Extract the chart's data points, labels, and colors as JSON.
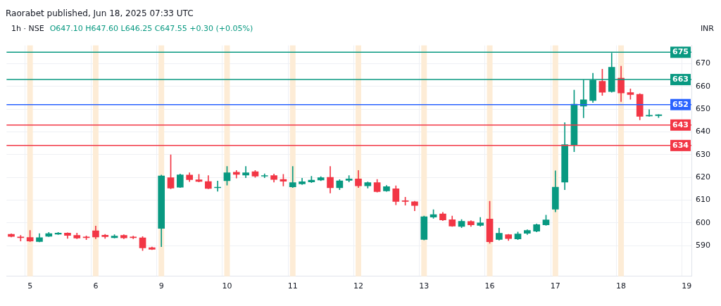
{
  "chart_data": {
    "type": "candlestick",
    "title": "1h · NSE",
    "subtitle": "O647.10 H647.60 L646.25 C647.55 +0.30 (+0.05%)",
    "annotations": [
      "Raorabet published, Jun 18, 2025 07:33 UTC"
    ],
    "ylabel": "INR",
    "categories": [
      null,
      null,
      "5",
      null,
      null,
      null,
      null,
      null,
      null,
      "6",
      null,
      null,
      null,
      null,
      null,
      null,
      "9",
      null,
      null,
      null,
      null,
      null,
      null,
      "10",
      null,
      null,
      null,
      null,
      null,
      null,
      "11",
      null,
      null,
      null,
      null,
      null,
      null,
      "12",
      null,
      null,
      null,
      null,
      null,
      null,
      "13",
      null,
      null,
      null,
      null,
      null,
      null,
      "16",
      null,
      null,
      null,
      null,
      null,
      null,
      "17",
      null,
      null,
      null,
      null,
      null,
      null,
      "18",
      null,
      null,
      null,
      null,
      null,
      null,
      "19"
    ],
    "ohlc": [
      [
        595,
        595.2,
        593.8,
        594
      ],
      [
        593.7,
        594.5,
        592,
        593.5
      ],
      [
        593.6,
        596.7,
        591.8,
        592
      ],
      [
        591.8,
        595.3,
        591.6,
        593.5
      ],
      [
        594.1,
        595.8,
        593.9,
        595.3
      ],
      [
        595,
        595.8,
        594.9,
        595.5
      ],
      [
        595.5,
        595.7,
        593.2,
        594.5
      ],
      [
        594.5,
        595.5,
        593,
        593.3
      ],
      [
        593.6,
        594.3,
        592.6,
        593.5
      ],
      [
        596.5,
        598.6,
        593,
        593.8
      ],
      [
        594.6,
        595,
        593.2,
        593.9
      ],
      [
        593.5,
        594.8,
        593.3,
        594.2
      ],
      [
        594.5,
        594.8,
        593,
        593.4
      ],
      [
        593.7,
        594.2,
        593,
        593.5
      ],
      [
        593.4,
        594,
        587.8,
        589
      ],
      [
        589.1,
        589.4,
        588.2,
        588.4
      ],
      [
        597.6,
        621,
        589.5,
        620.6
      ],
      [
        619.9,
        629.9,
        615,
        615.3
      ],
      [
        615.7,
        621.5,
        615.5,
        621.1
      ],
      [
        621,
        622,
        618.1,
        619
      ],
      [
        618.9,
        621.3,
        618,
        618.2
      ],
      [
        618.2,
        620.8,
        615,
        615.1
      ],
      [
        615.4,
        618.4,
        613.9,
        615.6
      ],
      [
        618.5,
        624.8,
        616.6,
        622
      ],
      [
        622.3,
        623,
        619.7,
        621.3
      ],
      [
        621,
        624.8,
        619.8,
        622
      ],
      [
        622.5,
        623,
        620,
        620.5
      ],
      [
        620.5,
        621.6,
        619.8,
        620.7
      ],
      [
        620.8,
        621.5,
        617.9,
        619.1
      ],
      [
        619.1,
        621.3,
        616.2,
        618.3
      ],
      [
        615.8,
        624.8,
        615.5,
        617.7
      ],
      [
        617.1,
        619.6,
        616.8,
        618.1
      ],
      [
        618,
        620.5,
        617.7,
        618.8
      ],
      [
        618.8,
        620.3,
        618.5,
        619.9
      ],
      [
        620,
        624.8,
        613.1,
        615.4
      ],
      [
        615.4,
        619,
        614.6,
        618.5
      ],
      [
        618.7,
        620.8,
        618,
        619.3
      ],
      [
        619.3,
        623,
        615.5,
        616.3
      ],
      [
        616.3,
        618,
        615.3,
        617.7
      ],
      [
        617.7,
        619.1,
        613.5,
        613.7
      ],
      [
        614,
        616.5,
        613.8,
        615.9
      ],
      [
        615,
        616.3,
        607.9,
        609.4
      ],
      [
        609.6,
        611.3,
        607.8,
        609.4
      ],
      [
        609.3,
        609.5,
        605.3,
        607.6
      ],
      [
        592.7,
        603,
        592.5,
        602.7
      ],
      [
        602.5,
        605.8,
        602,
        603.6
      ],
      [
        603.9,
        604.6,
        601,
        601.3
      ],
      [
        601.4,
        603,
        598.4,
        598.6
      ],
      [
        598.4,
        601.5,
        597.9,
        600.7
      ],
      [
        600.6,
        601,
        598.4,
        599.1
      ],
      [
        598.9,
        602.4,
        598.5,
        600
      ],
      [
        601.7,
        609.5,
        591,
        591.7
      ],
      [
        592.7,
        597.7,
        592.4,
        595.4
      ],
      [
        594.8,
        595,
        592.2,
        593.1
      ],
      [
        592.9,
        596,
        592.6,
        595.1
      ],
      [
        595.4,
        597,
        594.9,
        596.7
      ],
      [
        596.3,
        599.5,
        596,
        599.2
      ],
      [
        599.1,
        603.4,
        598.9,
        601.3
      ],
      [
        606,
        622.9,
        604.8,
        615.7
      ],
      [
        617.9,
        644.1,
        614.6,
        634.4
      ],
      [
        634.4,
        658.4,
        631.3,
        652.2
      ],
      [
        651.3,
        662.9,
        646.2,
        654.1
      ],
      [
        653.8,
        665.8,
        652.9,
        662.7
      ],
      [
        662.2,
        667.6,
        656,
        657.4
      ],
      [
        657.7,
        674.6,
        657.4,
        668.4
      ],
      [
        663.6,
        668.9,
        653.3,
        657.1
      ],
      [
        657.3,
        658.9,
        654.3,
        656.4
      ],
      [
        656.5,
        656.8,
        645.3,
        646.8
      ],
      [
        647,
        649.8,
        646.8,
        647.1
      ],
      [
        647.1,
        647.6,
        646.25,
        647.55
      ],
      null,
      null,
      null
    ],
    "ylim": [
      576.5,
      678
    ],
    "yticks": [
      590,
      600,
      610,
      620,
      630,
      640,
      650,
      660,
      670
    ],
    "grid": true,
    "ref_lines": [
      {
        "axis": "y",
        "value": 675,
        "label": "675",
        "color": "#089981"
      },
      {
        "axis": "y",
        "value": 663,
        "label": "663",
        "color": "#089981"
      },
      {
        "axis": "y",
        "value": 652,
        "label": "652",
        "color": "#2962ff"
      },
      {
        "axis": "y",
        "value": 643,
        "label": "643",
        "color": "#f23645"
      },
      {
        "axis": "y",
        "value": 634,
        "label": "634",
        "color": "#f23645"
      }
    ],
    "bands": [
      {
        "axis": "x",
        "from": "5",
        "to": "5",
        "color": "#fdecd6"
      },
      {
        "axis": "x",
        "from": "6",
        "to": "6",
        "color": "#fdecd6"
      },
      {
        "axis": "x",
        "from": "9",
        "to": "9",
        "color": "#fdecd6"
      },
      {
        "axis": "x",
        "from": "10",
        "to": "10",
        "color": "#fdecd6"
      },
      {
        "axis": "x",
        "from": "11",
        "to": "11",
        "color": "#fdecd6"
      },
      {
        "axis": "x",
        "from": "12",
        "to": "12",
        "color": "#fdecd6"
      },
      {
        "axis": "x",
        "from": "13",
        "to": "13",
        "color": "#fdecd6"
      },
      {
        "axis": "x",
        "from": "16",
        "to": "16",
        "color": "#fdecd6"
      },
      {
        "axis": "x",
        "from": "17",
        "to": "17",
        "color": "#fdecd6"
      },
      {
        "axis": "x",
        "from": "18",
        "to": "18",
        "color": "#fdecd6"
      }
    ]
  }
}
